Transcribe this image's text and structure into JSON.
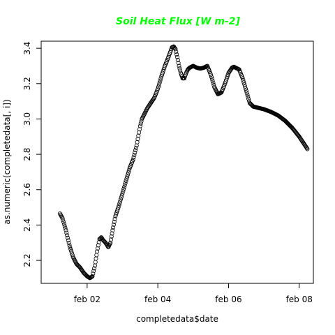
{
  "chart_data": {
    "type": "scatter",
    "title": "Soil Heat Flux [W m-2]",
    "title_color": "#00ff00",
    "xlabel": "completedata$date",
    "ylabel": "as.numeric(completedata[, i])",
    "marker": "open-circle",
    "marker_color": "#000000",
    "x_unit": "days",
    "xlim": [
      0.7,
      8.4
    ],
    "ylim": [
      2.07,
      3.44
    ],
    "x_ticks": [
      {
        "value": 2,
        "label": "feb 02"
      },
      {
        "value": 4,
        "label": "feb 04"
      },
      {
        "value": 6,
        "label": "feb 06"
      },
      {
        "value": 8,
        "label": "feb 08"
      }
    ],
    "y_ticks": [
      {
        "value": 2.2,
        "label": "2.2"
      },
      {
        "value": 2.4,
        "label": "2.4"
      },
      {
        "value": 2.6,
        "label": "2.6"
      },
      {
        "value": 2.8,
        "label": "2.8"
      },
      {
        "value": 3.0,
        "label": "3.0"
      },
      {
        "value": 3.2,
        "label": "3.2"
      },
      {
        "value": 3.4,
        "label": "3.4"
      }
    ],
    "grid": false,
    "legend": "none",
    "x": [
      1.23,
      1.3,
      1.4,
      1.5,
      1.6,
      1.7,
      1.8,
      1.9,
      2.0,
      2.08,
      2.15,
      2.22,
      2.28,
      2.35,
      2.4,
      2.45,
      2.52,
      2.6,
      2.66,
      2.72,
      2.8,
      2.9,
      3.0,
      3.1,
      3.2,
      3.3,
      3.4,
      3.5,
      3.55,
      3.6,
      3.7,
      3.8,
      3.9,
      4.0,
      4.1,
      4.2,
      4.3,
      4.4,
      4.45,
      4.5,
      4.55,
      4.6,
      4.65,
      4.7,
      4.75,
      4.8,
      4.85,
      4.9,
      5.0,
      5.1,
      5.2,
      5.3,
      5.4,
      5.5,
      5.6,
      5.7,
      5.8,
      5.9,
      6.0,
      6.1,
      6.15,
      6.2,
      6.3,
      6.4,
      6.5,
      6.6,
      6.7,
      6.8,
      6.9,
      7.0,
      7.2,
      7.4,
      7.6,
      7.8,
      8.0,
      8.1,
      8.2,
      8.23
    ],
    "y": [
      2.465,
      2.44,
      2.37,
      2.285,
      2.22,
      2.18,
      2.16,
      2.13,
      2.11,
      2.1,
      2.11,
      2.17,
      2.25,
      2.32,
      2.33,
      2.315,
      2.3,
      2.275,
      2.3,
      2.37,
      2.45,
      2.51,
      2.58,
      2.65,
      2.72,
      2.77,
      2.85,
      2.96,
      3.0,
      3.02,
      3.06,
      3.09,
      3.12,
      3.17,
      3.24,
      3.3,
      3.35,
      3.405,
      3.41,
      3.395,
      3.35,
      3.3,
      3.26,
      3.23,
      3.23,
      3.26,
      3.28,
      3.29,
      3.3,
      3.29,
      3.285,
      3.29,
      3.3,
      3.25,
      3.18,
      3.14,
      3.15,
      3.2,
      3.26,
      3.29,
      3.295,
      3.29,
      3.28,
      3.23,
      3.16,
      3.09,
      3.07,
      3.065,
      3.06,
      3.055,
      3.04,
      3.02,
      2.99,
      2.95,
      2.9,
      2.87,
      2.84,
      2.83
    ]
  }
}
